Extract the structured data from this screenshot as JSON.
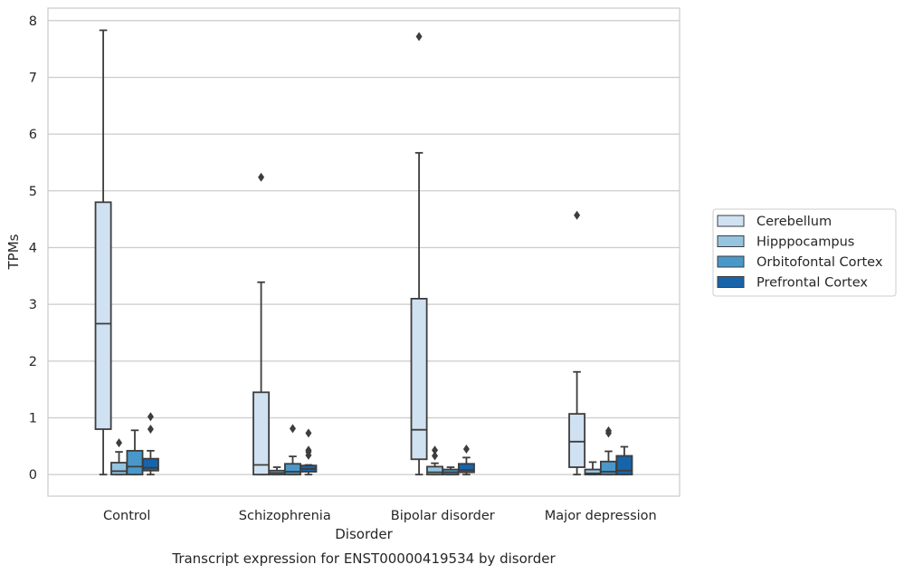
{
  "chart_data": {
    "type": "box",
    "title": "Transcript expression for ENST00000419534 by disorder",
    "xlabel": "Disorder",
    "ylabel": "TPMs",
    "categories": [
      "Control",
      "Schizophrenia",
      "Bipolar disorder",
      "Major depression"
    ],
    "y_ticks": [
      "0",
      "1",
      "2",
      "3",
      "4",
      "5",
      "6",
      "7",
      "8"
    ],
    "ylim": [
      -0.38,
      8.22
    ],
    "grid": "horizontal",
    "legend_placement": "right",
    "series": [
      {
        "name": "Cerebellum",
        "color": "#d0e1f2",
        "boxes": [
          {
            "whislo": 0.0,
            "q1": 0.8,
            "med": 2.66,
            "q3": 4.8,
            "whishi": 7.83,
            "fliers": []
          },
          {
            "whislo": 0.0,
            "q1": 0.0,
            "med": 0.17,
            "q3": 1.45,
            "whishi": 3.39,
            "fliers": [
              5.24
            ]
          },
          {
            "whislo": 0.0,
            "q1": 0.27,
            "med": 0.79,
            "q3": 3.1,
            "whishi": 5.67,
            "fliers": [
              7.72
            ]
          },
          {
            "whislo": 0.0,
            "q1": 0.13,
            "med": 0.58,
            "q3": 1.07,
            "whishi": 1.81,
            "fliers": [
              4.57
            ]
          }
        ]
      },
      {
        "name": "Hipppocampus",
        "color": "#94c4df",
        "boxes": [
          {
            "whislo": 0.0,
            "q1": 0.0,
            "med": 0.06,
            "q3": 0.21,
            "whishi": 0.4,
            "fliers": [
              0.56
            ]
          },
          {
            "whislo": 0.0,
            "q1": 0.0,
            "med": 0.03,
            "q3": 0.07,
            "whishi": 0.13,
            "fliers": []
          },
          {
            "whislo": 0.0,
            "q1": 0.0,
            "med": 0.04,
            "q3": 0.14,
            "whishi": 0.2,
            "fliers": [
              0.33,
              0.43
            ]
          },
          {
            "whislo": 0.0,
            "q1": 0.0,
            "med": 0.02,
            "q3": 0.09,
            "whishi": 0.22,
            "fliers": []
          }
        ]
      },
      {
        "name": "Orbitofontal Cortex",
        "color": "#4a98c9",
        "boxes": [
          {
            "whislo": 0.0,
            "q1": 0.0,
            "med": 0.14,
            "q3": 0.42,
            "whishi": 0.78,
            "fliers": []
          },
          {
            "whislo": 0.0,
            "q1": 0.0,
            "med": 0.05,
            "q3": 0.19,
            "whishi": 0.32,
            "fliers": [
              0.81
            ]
          },
          {
            "whislo": 0.0,
            "q1": 0.0,
            "med": 0.04,
            "q3": 0.09,
            "whishi": 0.13,
            "fliers": []
          },
          {
            "whislo": 0.0,
            "q1": 0.0,
            "med": 0.05,
            "q3": 0.23,
            "whishi": 0.41,
            "fliers": [
              0.73,
              0.77
            ]
          }
        ]
      },
      {
        "name": "Prefrontal Cortex",
        "color": "#1764ab",
        "boxes": [
          {
            "whislo": 0.0,
            "q1": 0.07,
            "med": 0.12,
            "q3": 0.28,
            "whishi": 0.42,
            "fliers": [
              0.8,
              1.02
            ]
          },
          {
            "whislo": 0.0,
            "q1": 0.05,
            "med": 0.1,
            "q3": 0.16,
            "whishi": 0.17,
            "fliers": [
              0.34,
              0.4,
              0.43,
              0.73
            ]
          },
          {
            "whislo": 0.0,
            "q1": 0.04,
            "med": 0.08,
            "q3": 0.19,
            "whishi": 0.3,
            "fliers": [
              0.45
            ]
          },
          {
            "whislo": 0.0,
            "q1": 0.0,
            "med": 0.07,
            "q3": 0.33,
            "whishi": 0.49,
            "fliers": []
          }
        ]
      }
    ]
  }
}
